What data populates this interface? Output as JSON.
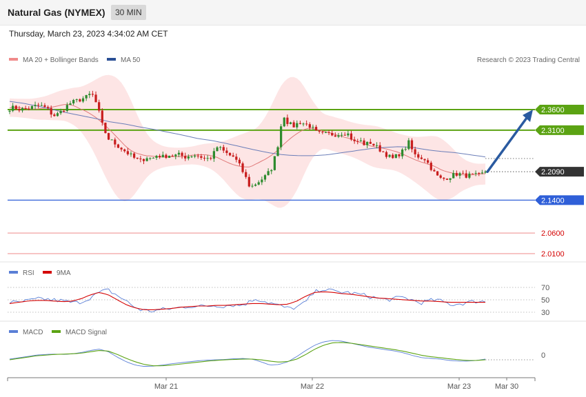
{
  "header": {
    "title": "Natural Gas (NYMEX)",
    "timeframe": "30 MIN",
    "datetime": "Thursday, March 23, 2023 4:34:02 AM CET"
  },
  "legend": {
    "ma20": "MA 20 + Bollinger Bands",
    "ma50": "MA 50",
    "rsi": "RSI",
    "rsi_ma": "9MA",
    "macd": "MACD",
    "macd_signal": "MACD Signal",
    "credit": "Research © 2023 Trading Central"
  },
  "colors": {
    "resistance": "#5ba313",
    "support": "#2f5fd8",
    "extra_support": "#d40000",
    "current": "#333333",
    "candle_up": "#2e8b2e",
    "candle_down": "#c81e1e",
    "ma20": "#e07a7a",
    "ma50": "#6a7db8",
    "band_fill": "#fde0e0",
    "rsi": "#5a7fd6",
    "rsi_ma": "#d40000",
    "macd": "#5a7fd6",
    "macd_signal": "#5ba313",
    "arrow": "#2a5aa0"
  },
  "chart_data": {
    "type": "candlestick",
    "price_axis": {
      "min": 2.0,
      "max": 2.4
    },
    "x_labels": [
      "Mar 21",
      "Mar 22",
      "Mar 23",
      "Mar 30"
    ],
    "levels": [
      {
        "name": "resistance-2",
        "value": 2.36,
        "label": "2.3600",
        "kind": "resistance"
      },
      {
        "name": "resistance-1",
        "value": 2.31,
        "label": "2.3100",
        "kind": "resistance"
      },
      {
        "name": "current-price",
        "value": 2.209,
        "label": "2.2090",
        "kind": "current"
      },
      {
        "name": "support-1",
        "value": 2.14,
        "label": "2.1400",
        "kind": "support"
      },
      {
        "name": "support-2",
        "value": 2.06,
        "label": "2.0600",
        "kind": "extra"
      },
      {
        "name": "support-3",
        "value": 2.01,
        "label": "2.0100",
        "kind": "extra"
      }
    ],
    "price_path": [
      2.363,
      2.365,
      2.36,
      2.362,
      2.365,
      2.37,
      2.368,
      2.36,
      2.345,
      2.35,
      2.363,
      2.375,
      2.38,
      2.385,
      2.39,
      2.4,
      2.37,
      2.32,
      2.29,
      2.28,
      2.27,
      2.26,
      2.25,
      2.24,
      2.235,
      2.245,
      2.24,
      2.25,
      2.245,
      2.25,
      2.248,
      2.25,
      2.245,
      2.248,
      2.25,
      2.245,
      2.24,
      2.245,
      2.27,
      2.26,
      2.25,
      2.245,
      2.225,
      2.2,
      2.17,
      2.18,
      2.19,
      2.2,
      2.22,
      2.27,
      2.35,
      2.325,
      2.32,
      2.33,
      2.325,
      2.32,
      2.305,
      2.3,
      2.3,
      2.3,
      2.3,
      2.305,
      2.3,
      2.28,
      2.285,
      2.275,
      2.28,
      2.27,
      2.26,
      2.25,
      2.24,
      2.25,
      2.26,
      2.28,
      2.25,
      2.245,
      2.24,
      2.22,
      2.2,
      2.19,
      2.195,
      2.2,
      2.205,
      2.2,
      2.2,
      2.2,
      2.2,
      2.209
    ],
    "ma50_path": [
      2.38,
      2.375,
      2.368,
      2.36,
      2.352,
      2.345,
      2.338,
      2.33,
      2.325,
      2.318,
      2.312,
      2.305,
      2.298,
      2.29,
      2.285,
      2.278,
      2.27,
      2.262,
      2.255,
      2.25,
      2.248,
      2.248,
      2.25,
      2.255,
      2.26,
      2.265,
      2.268,
      2.27,
      2.268,
      2.262,
      2.258,
      2.255,
      2.25,
      2.245
    ],
    "rsi_axis": {
      "ticks": [
        70,
        50,
        30
      ]
    },
    "rsi_path": [
      46,
      45,
      48,
      50,
      52,
      50,
      49,
      47,
      45,
      48,
      55,
      62,
      66,
      58,
      50,
      40,
      34,
      32,
      33,
      35,
      36,
      38,
      40,
      39,
      40,
      41,
      40,
      42,
      41,
      45,
      52,
      48,
      44,
      40,
      36,
      38,
      45,
      60,
      68,
      65,
      63,
      62,
      60,
      58,
      55,
      52,
      50,
      52,
      54,
      50,
      45,
      48,
      50,
      46,
      42,
      44,
      46,
      48,
      47
    ],
    "rsi_ma_path": [
      44,
      46,
      48,
      49,
      49,
      48,
      47,
      48,
      52,
      58,
      62,
      58,
      50,
      42,
      37,
      34,
      34,
      35,
      36,
      38,
      39,
      40,
      40,
      41,
      41,
      42,
      43,
      44,
      44,
      43,
      42,
      43,
      48,
      56,
      62,
      63,
      62,
      60,
      59,
      57,
      55,
      53,
      52,
      51,
      50,
      49,
      48,
      48,
      47,
      46,
      46,
      46,
      46,
      46
    ],
    "macd_axis": {
      "ticks": [
        0
      ]
    },
    "macd_path": [
      0.002,
      0.006,
      0.01,
      0.014,
      0.016,
      0.017,
      0.016,
      0.018,
      0.022,
      0.028,
      0.032,
      0.024,
      0.008,
      -0.006,
      -0.016,
      -0.02,
      -0.019,
      -0.016,
      -0.012,
      -0.009,
      -0.006,
      -0.003,
      -0.001,
      0.0,
      0.001,
      0.003,
      0.004,
      0.002,
      -0.006,
      -0.016,
      -0.014,
      -0.006,
      0.01,
      0.028,
      0.044,
      0.054,
      0.058,
      0.056,
      0.05,
      0.044,
      0.038,
      0.034,
      0.03,
      0.026,
      0.02,
      0.012,
      0.006,
      0.004,
      0.002,
      -0.002,
      -0.004,
      -0.004,
      -0.002,
      0.002
    ],
    "macd_signal_path": [
      0.0,
      0.004,
      0.008,
      0.012,
      0.014,
      0.016,
      0.017,
      0.018,
      0.02,
      0.024,
      0.028,
      0.026,
      0.016,
      0.004,
      -0.006,
      -0.014,
      -0.018,
      -0.018,
      -0.016,
      -0.013,
      -0.01,
      -0.007,
      -0.004,
      -0.002,
      0.0,
      0.001,
      0.002,
      0.002,
      0.0,
      -0.004,
      -0.007,
      -0.005,
      0.002,
      0.016,
      0.032,
      0.044,
      0.051,
      0.052,
      0.05,
      0.046,
      0.042,
      0.038,
      0.034,
      0.03,
      0.025,
      0.019,
      0.013,
      0.009,
      0.006,
      0.003,
      0.0,
      -0.002,
      -0.002,
      0.0
    ]
  }
}
